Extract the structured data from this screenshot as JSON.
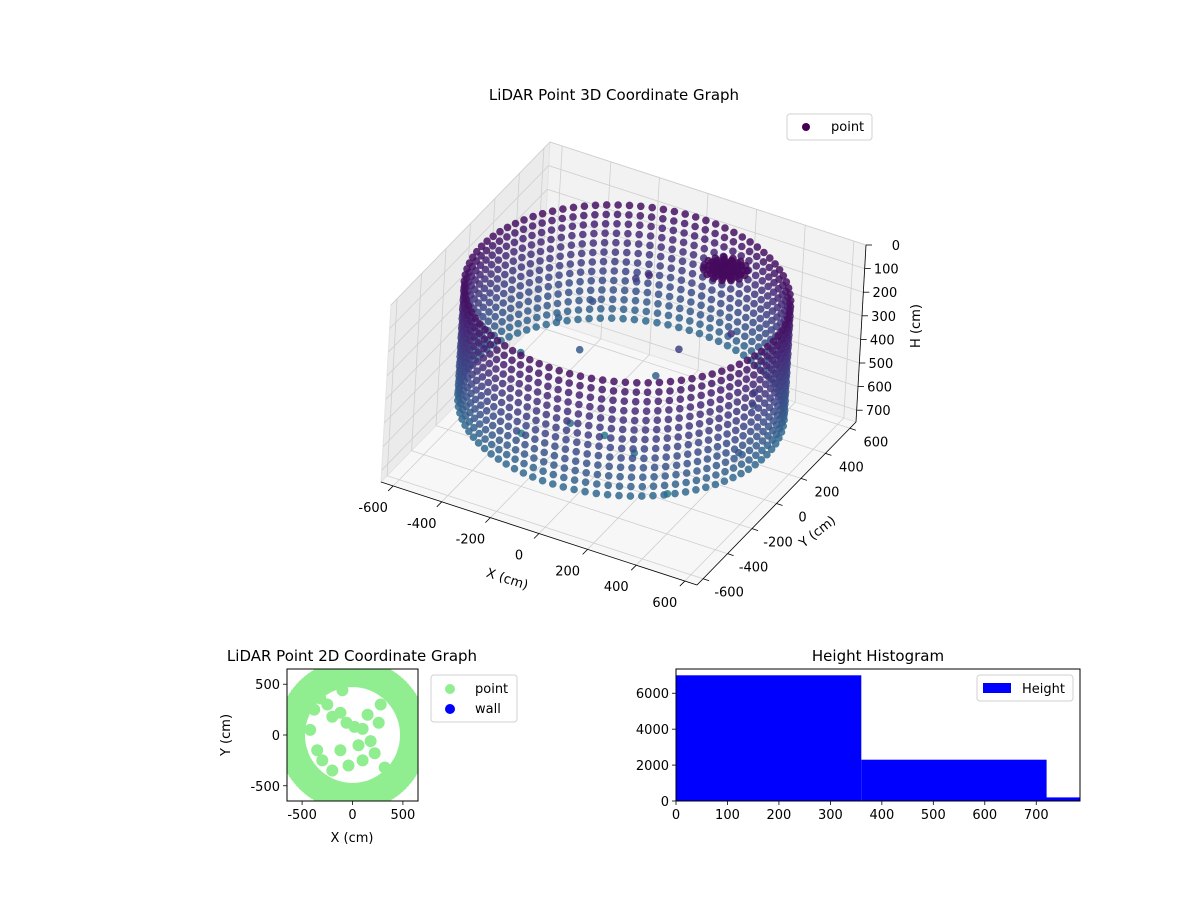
{
  "figure": {
    "chart_data": [
      {
        "type": "scatter",
        "projection": "3d",
        "title": "LiDAR Point 3D Coordinate Graph",
        "xlabel": "X (cm)",
        "ylabel": "Y (cm)",
        "zlabel": "H (cm)",
        "x_ticks": [
          -600,
          -400,
          -200,
          0,
          200,
          400,
          600
        ],
        "y_ticks": [
          600,
          400,
          200,
          0,
          -200,
          -400,
          -600
        ],
        "z_ticks": [
          0,
          100,
          200,
          300,
          400,
          500,
          600,
          700
        ],
        "xlim": [
          -650,
          650
        ],
        "ylim": [
          -650,
          650
        ],
        "zlim": [
          0,
          750
        ],
        "z_inverted": true,
        "grid": true,
        "colormap": "viridis",
        "legend": {
          "position": "top-right",
          "entries": [
            {
              "label": "point",
              "color": "#440154"
            }
          ]
        },
        "structure": {
          "wall": {
            "shape": "ring",
            "radius": 600,
            "h_range": [
              80,
              560
            ],
            "h_step": 40,
            "angle_step_deg": 4
          },
          "center_cluster": {
            "x": 250,
            "y": 300,
            "h": 50,
            "radius": 80
          },
          "scattered_points": [
            [
              -520,
              220,
              620
            ],
            [
              -440,
              360,
              520
            ],
            [
              -330,
              410,
              440
            ],
            [
              -170,
              430,
              300
            ],
            [
              -70,
              330,
              200
            ],
            [
              40,
              200,
              520
            ],
            [
              160,
              130,
              330
            ],
            [
              330,
              210,
              250
            ],
            [
              480,
              120,
              400
            ],
            [
              560,
              -160,
              480
            ],
            [
              -600,
              80,
              540
            ],
            [
              -150,
              -110,
              620
            ],
            [
              -60,
              0,
              700
            ],
            [
              120,
              -120,
              650
            ],
            [
              300,
              -200,
              720
            ],
            [
              -350,
              -100,
              735
            ],
            [
              -250,
              150,
              480
            ],
            [
              380,
              330,
              600
            ]
          ]
        }
      },
      {
        "type": "scatter",
        "title": "LiDAR Point 2D Coordinate Graph",
        "xlabel": "X (cm)",
        "ylabel": "Y (cm)",
        "x_ticks": [
          -500,
          0,
          500
        ],
        "y_ticks": [
          500,
          0,
          -500
        ],
        "xlim": [
          -650,
          650
        ],
        "ylim": [
          -650,
          650
        ],
        "grid": false,
        "legend": {
          "position": "outside-right",
          "entries": [
            {
              "label": "point",
              "color": "#90ee90"
            },
            {
              "label": "wall",
              "color": "#0000ff"
            }
          ]
        },
        "series": [
          {
            "name": "point",
            "color": "#90ee90",
            "description_points": "ring radius 600 plus interior scatter"
          },
          {
            "name": "wall",
            "color": "#0000ff",
            "points": []
          }
        ]
      },
      {
        "type": "bar",
        "subtype": "histogram",
        "title": "Height Histogram",
        "bins": [
          {
            "start": 0,
            "end": 360,
            "count": 7000
          },
          {
            "start": 360,
            "end": 720,
            "count": 2300
          },
          {
            "start": 720,
            "end": 785,
            "count": 200
          }
        ],
        "x_ticks": [
          0,
          100,
          200,
          300,
          400,
          500,
          600,
          700
        ],
        "y_ticks": [
          0,
          2000,
          4000,
          6000
        ],
        "xlim": [
          0,
          785
        ],
        "ylim": [
          0,
          7350
        ],
        "color": "#0000ff",
        "legend": {
          "position": "top-right",
          "entries": [
            {
              "label": "Height",
              "color": "#0000ff"
            }
          ]
        }
      }
    ]
  }
}
